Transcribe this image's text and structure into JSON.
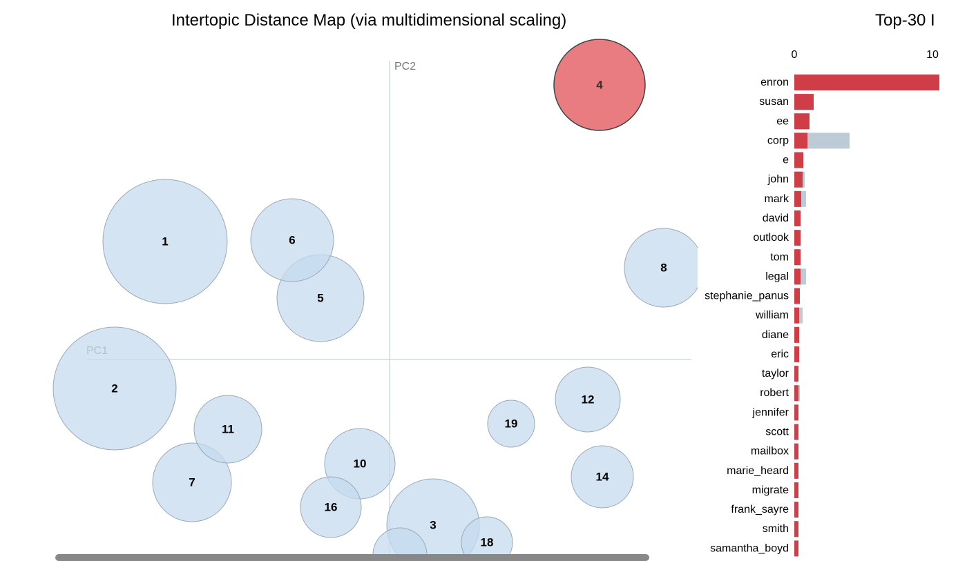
{
  "map_title": "Intertopic Distance Map (via multidimensional scaling)",
  "bar_title": "Top-30 I",
  "colors": {
    "topic_fill": "#c6dbef",
    "topic_stroke": "#9aa9b6",
    "selected_fill": "#e5656a",
    "selected_stroke": "#444444",
    "axis_line": "#b7c9d9",
    "bar_overall": "#bccbd6",
    "bar_topic": "#cf3d47"
  },
  "chart_data": [
    {
      "type": "scatter",
      "title": "Intertopic Distance Map (via multidimensional scaling)",
      "xlabel": "PC1",
      "ylabel": "PC2",
      "selected_topic": "4",
      "xlim": [
        -486,
        436
      ],
      "ylim": [
        -290,
        433
      ],
      "points": [
        {
          "label": "1",
          "x": -325,
          "y": 171,
          "r": 90
        },
        {
          "label": "2",
          "x": -398,
          "y": -42,
          "r": 89
        },
        {
          "label": "3",
          "x": 63,
          "y": -240,
          "r": 67
        },
        {
          "label": "4",
          "x": 304,
          "y": 398,
          "r": 66
        },
        {
          "label": "5",
          "x": -100,
          "y": 89,
          "r": 63
        },
        {
          "label": "6",
          "x": -141,
          "y": 173,
          "r": 60
        },
        {
          "label": "7",
          "x": -286,
          "y": -178,
          "r": 57
        },
        {
          "label": "8",
          "x": 397,
          "y": 133,
          "r": 57
        },
        {
          "label": "10",
          "x": -43,
          "y": -151,
          "r": 51
        },
        {
          "label": "11",
          "x": -234,
          "y": -101,
          "r": 49
        },
        {
          "label": "12",
          "x": 287,
          "y": -58,
          "r": 47
        },
        {
          "label": "14",
          "x": 308,
          "y": -170,
          "r": 45
        },
        {
          "label": "16",
          "x": -85,
          "y": -214,
          "r": 44
        },
        {
          "label": "18",
          "x": 141,
          "y": -265,
          "r": 37
        },
        {
          "label": "19",
          "x": 176,
          "y": -93,
          "r": 34
        },
        {
          "label": "",
          "x": 15,
          "y": -283,
          "r": 39
        }
      ]
    },
    {
      "type": "bar",
      "title": "Top-30 I",
      "xlim": [
        0,
        10
      ],
      "xticks": [
        0,
        10
      ],
      "categories": [
        "enron",
        "susan",
        "ee",
        "corp",
        "e",
        "john",
        "mark",
        "david",
        "outlook",
        "tom",
        "legal",
        "stephanie_panus",
        "william",
        "diane",
        "eric",
        "taylor",
        "robert",
        "jennifer",
        "scott",
        "mailbox",
        "marie_heard",
        "migrate",
        "frank_sayre",
        "smith",
        "samantha_boyd"
      ],
      "series": [
        {
          "values": [
            10.5,
            1.4,
            1.1,
            4.0,
            0.65,
            0.75,
            0.85,
            0.45,
            0.45,
            0.45,
            0.85,
            0.4,
            0.6,
            0.35,
            0.35,
            0.3,
            0.4,
            0.3,
            0.3,
            0.3,
            0.3,
            0.3,
            0.3,
            0.3,
            0.3
          ]
        },
        {
          "values": [
            10.5,
            1.4,
            1.1,
            0.95,
            0.65,
            0.6,
            0.5,
            0.45,
            0.45,
            0.45,
            0.45,
            0.4,
            0.35,
            0.35,
            0.35,
            0.3,
            0.3,
            0.3,
            0.3,
            0.3,
            0.3,
            0.3,
            0.3,
            0.3,
            0.3
          ]
        }
      ]
    }
  ]
}
